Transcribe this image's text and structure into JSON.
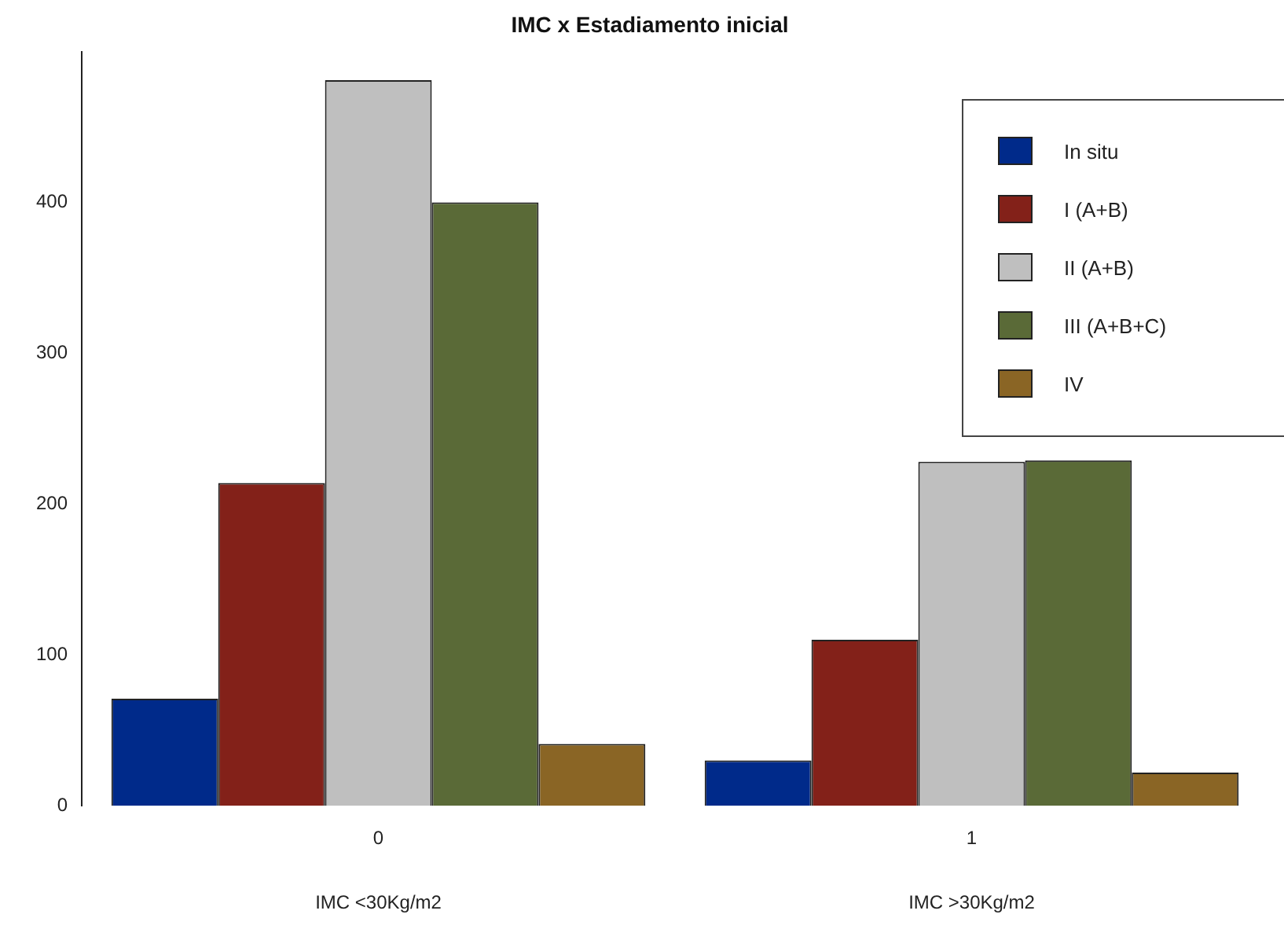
{
  "chart_data": {
    "type": "bar",
    "title": "IMC x Estadiamento inicial",
    "categories": [
      "0",
      "1"
    ],
    "series": [
      {
        "name": "In situ",
        "color": "#002a8a",
        "values": [
          71,
          30
        ]
      },
      {
        "name": "I (A+B)",
        "color": "#832119",
        "values": [
          214,
          110
        ]
      },
      {
        "name": "II (A+B)",
        "color": "#bfbfbf",
        "values": [
          481,
          228
        ]
      },
      {
        "name": "III (A+B+C)",
        "color": "#5a6a37",
        "values": [
          400,
          229
        ]
      },
      {
        "name": "IV",
        "color": "#8a6525",
        "values": [
          41,
          22
        ]
      }
    ],
    "ylim": [
      0,
      500
    ],
    "yticks": [
      0,
      100,
      200,
      300,
      400
    ],
    "grid": false,
    "legend": "top right",
    "annotations": [
      "IMC <30Kg/m2",
      "IMC >30Kg/m2"
    ]
  }
}
